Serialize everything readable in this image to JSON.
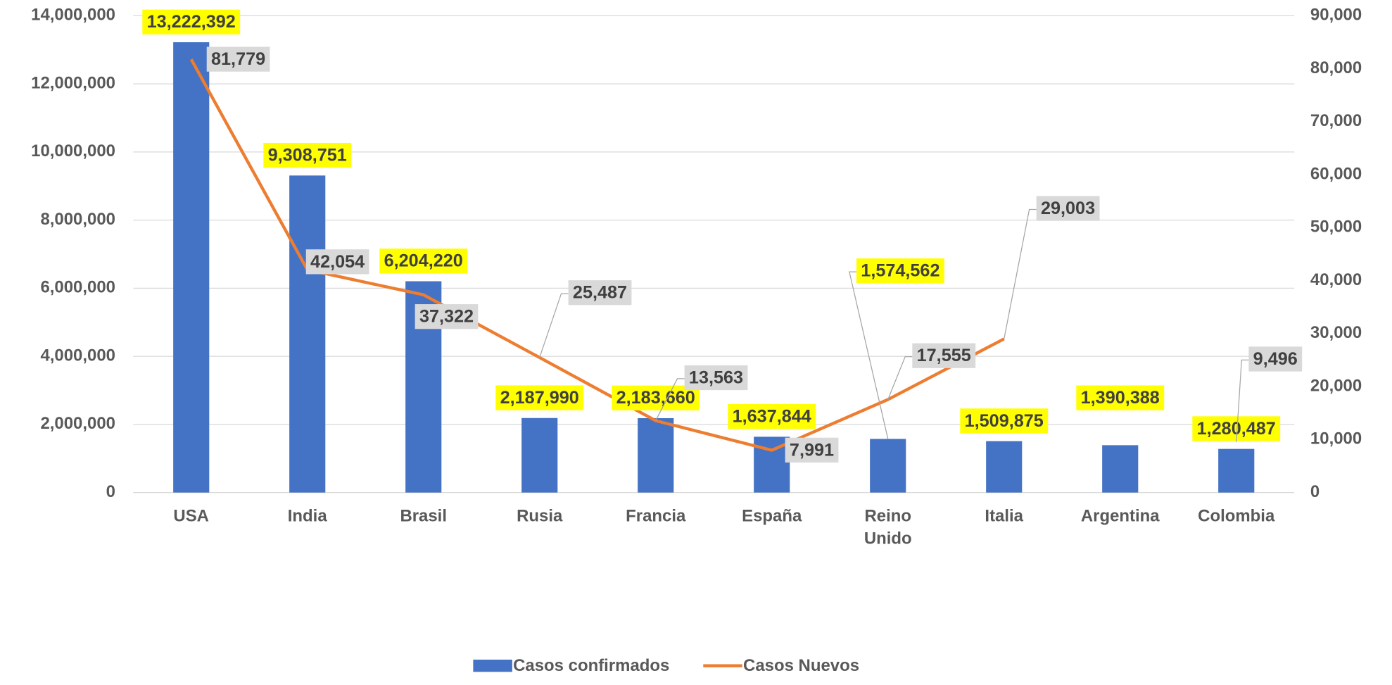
{
  "chart_data": {
    "type": "bar_line",
    "categories": [
      "USA",
      "India",
      "Brasil",
      "Rusia",
      "Francia",
      "España",
      "Reino Unido",
      "Italia",
      "Argentina",
      "Colombia"
    ],
    "series": [
      {
        "name": "Casos confirmados",
        "type": "bar",
        "color": "#4472c4",
        "values": [
          13222392,
          9308751,
          6204220,
          2187990,
          2183660,
          1637844,
          1574562,
          1509875,
          1390388,
          1280487
        ],
        "value_labels": [
          "13,222,392",
          "9,308,751",
          "6,204,220",
          "2,187,990",
          "2,183,660",
          "1,637,844",
          "1,574,562",
          "1,509,875",
          "1,390,388",
          "1,280,487"
        ],
        "label_color": "#ffff00"
      },
      {
        "name": "Casos Nuevos",
        "type": "line",
        "axis": "y2",
        "color": "#ed7d31",
        "values": [
          81779,
          42054,
          37322,
          25487,
          13563,
          7991,
          17555,
          29003,
          null,
          9496
        ],
        "value_labels": [
          "81,779",
          "42,054",
          "37,322",
          "25,487",
          "13,563",
          "7,991",
          "17,555",
          "29,003",
          null,
          "9,496"
        ],
        "label_color": "#d9d9d9"
      }
    ],
    "ylim": [
      0,
      14000000
    ],
    "yticks": [
      0,
      {
        "value": 2000000,
        "label": "2,000,000"
      },
      {
        "value": 4000000,
        "label": "4,000,000"
      },
      {
        "value": 6000000,
        "label": "6,000,000"
      },
      {
        "value": 8000000,
        "label": "8,000,000"
      },
      {
        "value": 10000000,
        "label": "10,000,000"
      },
      {
        "value": 12000000,
        "label": "12,000,000"
      },
      {
        "value": 14000000,
        "label": "14,000,000"
      }
    ],
    "y2lim": [
      0,
      90000
    ],
    "y2ticks": [
      0,
      {
        "value": 10000,
        "label": "10,000"
      },
      {
        "value": 20000,
        "label": "20,000"
      },
      {
        "value": 30000,
        "label": "30,000"
      },
      {
        "value": 40000,
        "label": "40,000"
      },
      {
        "value": 50000,
        "label": "50,000"
      },
      {
        "value": 60000,
        "label": "60,000"
      },
      {
        "value": 70000,
        "label": "70,000"
      },
      {
        "value": 80000,
        "label": "80,000"
      },
      {
        "value": 90000,
        "label": "90,000"
      }
    ],
    "grid": true,
    "legend": "bottom"
  }
}
